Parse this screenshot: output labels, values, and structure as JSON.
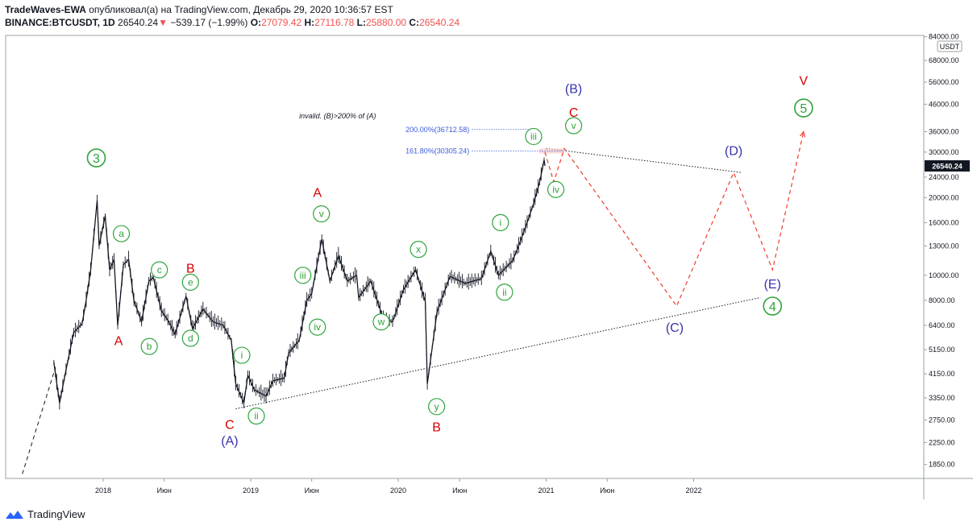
{
  "header": {
    "author": "TradeWaves-EWA",
    "published_text": " опубликовал(а) на TradingView.com, Декабрь 29, 2020 10:36:57 EST",
    "symbol": "BINANCE:BTCUSDT, 1D",
    "last": "26540.24",
    "down_arrow": "▼",
    "change": "−539.17 (−1.99%)",
    "o_label": "O:",
    "o_value": "27079.42",
    "h_label": "H:",
    "h_value": "27116.78",
    "l_label": "L:",
    "l_value": "25880.00",
    "c_label": "C:",
    "c_value": "26540.24"
  },
  "footer": {
    "brand": "TradingView"
  },
  "colors": {
    "green": "#2ea33b",
    "red": "#d50000",
    "blue": "#3634a8",
    "candle": "#131722",
    "dash_red": "#ef3b2c",
    "fib": "#3a5bd9",
    "price_tag": "#131722"
  },
  "chart_data": {
    "type": "line",
    "title": "",
    "scale": "log",
    "y_unit": "USDT",
    "current_price": "26540.24",
    "price_ticks": [
      {
        "v": 84000,
        "label": "84000.00"
      },
      {
        "v": 68000,
        "label": "68000.00"
      },
      {
        "v": 56000,
        "label": "56000.00"
      },
      {
        "v": 46000,
        "label": "46000.00"
      },
      {
        "v": 36000,
        "label": "36000.00"
      },
      {
        "v": 30000,
        "label": "30000.00"
      },
      {
        "v": 24000,
        "label": "24000.00"
      },
      {
        "v": 20000,
        "label": "20000.00"
      },
      {
        "v": 16000,
        "label": "16000.00"
      },
      {
        "v": 13000,
        "label": "13000.00"
      },
      {
        "v": 10000,
        "label": "10000.00"
      },
      {
        "v": 8000,
        "label": "8000.00"
      },
      {
        "v": 6400,
        "label": "6400.00"
      },
      {
        "v": 5150,
        "label": "5150.00"
      },
      {
        "v": 4150,
        "label": "4150.00"
      },
      {
        "v": 3350,
        "label": "3350.00"
      },
      {
        "v": 2750,
        "label": "2750.00"
      },
      {
        "v": 2250,
        "label": "2250.00"
      },
      {
        "v": 1850,
        "label": "1850.00"
      }
    ],
    "time_ticks": [
      {
        "d": "2018-01-01",
        "label": "2018"
      },
      {
        "d": "2018-06-01",
        "label": "Июн"
      },
      {
        "d": "2019-01-01",
        "label": "2019"
      },
      {
        "d": "2019-06-01",
        "label": "Июн"
      },
      {
        "d": "2020-01-01",
        "label": "2020"
      },
      {
        "d": "2020-06-01",
        "label": "Июн"
      },
      {
        "d": "2021-01-01",
        "label": "2021"
      },
      {
        "d": "2021-06-01",
        "label": "Июн"
      },
      {
        "d": "2022-01-01",
        "label": "2022"
      }
    ],
    "price_series": [
      [
        "2017-09-01",
        4600
      ],
      [
        "2017-09-15",
        3200
      ],
      [
        "2017-10-01",
        4300
      ],
      [
        "2017-10-20",
        6000
      ],
      [
        "2017-11-10",
        6500
      ],
      [
        "2017-11-20",
        8000
      ],
      [
        "2017-12-01",
        10500
      ],
      [
        "2017-12-17",
        19500
      ],
      [
        "2017-12-22",
        13000
      ],
      [
        "2018-01-06",
        17000
      ],
      [
        "2018-01-17",
        10500
      ],
      [
        "2018-01-28",
        11500
      ],
      [
        "2018-02-06",
        6400
      ],
      [
        "2018-02-20",
        11000
      ],
      [
        "2018-03-05",
        11500
      ],
      [
        "2018-03-18",
        8000
      ],
      [
        "2018-04-06",
        6600
      ],
      [
        "2018-04-24",
        9500
      ],
      [
        "2018-05-05",
        9800
      ],
      [
        "2018-05-25",
        7300
      ],
      [
        "2018-06-10",
        6700
      ],
      [
        "2018-06-28",
        5900
      ],
      [
        "2018-07-25",
        8300
      ],
      [
        "2018-08-10",
        6200
      ],
      [
        "2018-09-05",
        7400
      ],
      [
        "2018-09-30",
        6600
      ],
      [
        "2018-10-25",
        6400
      ],
      [
        "2018-11-14",
        5600
      ],
      [
        "2018-11-25",
        3800
      ],
      [
        "2018-12-15",
        3200
      ],
      [
        "2018-12-25",
        4100
      ],
      [
        "2019-01-10",
        3600
      ],
      [
        "2019-02-08",
        3400
      ],
      [
        "2019-02-25",
        3900
      ],
      [
        "2019-03-25",
        4000
      ],
      [
        "2019-04-05",
        5000
      ],
      [
        "2019-05-01",
        5600
      ],
      [
        "2019-05-20",
        8000
      ],
      [
        "2019-06-01",
        8500
      ],
      [
        "2019-06-26",
        13800
      ],
      [
        "2019-07-16",
        9500
      ],
      [
        "2019-08-06",
        11900
      ],
      [
        "2019-08-28",
        9500
      ],
      [
        "2019-09-20",
        10000
      ],
      [
        "2019-09-25",
        8200
      ],
      [
        "2019-10-25",
        9500
      ],
      [
        "2019-11-25",
        6800
      ],
      [
        "2019-12-18",
        6600
      ],
      [
        "2020-01-14",
        8800
      ],
      [
        "2020-02-13",
        10500
      ],
      [
        "2020-03-08",
        7900
      ],
      [
        "2020-03-13",
        3800
      ],
      [
        "2020-04-06",
        7200
      ],
      [
        "2020-05-08",
        9900
      ],
      [
        "2020-06-15",
        9300
      ],
      [
        "2020-07-25",
        9700
      ],
      [
        "2020-08-17",
        12400
      ],
      [
        "2020-09-05",
        10000
      ],
      [
        "2020-10-10",
        11400
      ],
      [
        "2020-10-25",
        13000
      ],
      [
        "2020-11-15",
        16000
      ],
      [
        "2020-12-01",
        19000
      ],
      [
        "2020-12-16",
        23000
      ],
      [
        "2020-12-27",
        28000
      ],
      [
        "2020-12-29",
        26540
      ]
    ],
    "forecast_path": [
      [
        "2020-12-29",
        30000
      ],
      [
        "2021-01-20",
        23000
      ],
      [
        "2021-02-15",
        31000
      ],
      [
        "2021-11-20",
        7600
      ],
      [
        "2022-04-10",
        25000
      ],
      [
        "2022-07-15",
        10500
      ],
      [
        "2022-09-30",
        36000
      ]
    ],
    "trendlines": [
      {
        "from": [
          "2018-11-25",
          3040
        ],
        "to": [
          "2022-06-15",
          8200
        ],
        "style": "dotted"
      },
      {
        "from": [
          "2021-01-01",
          31000
        ],
        "to": [
          "2022-05-01",
          25000
        ],
        "style": "dotted"
      },
      {
        "from": [
          "2017-06-15",
          1700
        ],
        "to": [
          "2017-09-01",
          4200
        ],
        "style": "dashed"
      }
    ],
    "fib_levels": [
      {
        "label": "200.00%(36712.58)",
        "value": 36712.58,
        "d_from": "2020-07-01",
        "d_to": "2020-12-10"
      },
      {
        "label": "161.80%(30305.24)",
        "value": 30305.24,
        "d_from": "2020-07-01",
        "d_to": "2021-02-15"
      }
    ],
    "annotation": "invalid. (B)>200% of (A)",
    "wave_labels": [
      {
        "t": "3",
        "d": "2017-12-15",
        "v": 28500,
        "c": "green",
        "circle": "double"
      },
      {
        "t": "a",
        "d": "2018-02-15",
        "v": 14500,
        "c": "green",
        "circle": "single"
      },
      {
        "t": "A",
        "d": "2018-02-08",
        "v": 5600,
        "c": "red"
      },
      {
        "t": "c",
        "d": "2018-05-20",
        "v": 10500,
        "c": "green",
        "circle": "single"
      },
      {
        "t": "B",
        "d": "2018-08-05",
        "v": 10700,
        "c": "red"
      },
      {
        "t": "e",
        "d": "2018-08-05",
        "v": 9400,
        "c": "green",
        "circle": "single"
      },
      {
        "t": "b",
        "d": "2018-04-25",
        "v": 5300,
        "c": "green",
        "circle": "single"
      },
      {
        "t": "d",
        "d": "2018-08-05",
        "v": 5700,
        "c": "green",
        "circle": "single"
      },
      {
        "t": "i",
        "d": "2018-12-10",
        "v": 4900,
        "c": "green",
        "circle": "single"
      },
      {
        "t": "C",
        "d": "2018-11-10",
        "v": 2650,
        "c": "red"
      },
      {
        "t": "(A)",
        "d": "2018-11-10",
        "v": 2300,
        "c": "blue"
      },
      {
        "t": "ii",
        "d": "2019-01-15",
        "v": 2850,
        "c": "green",
        "circle": "single"
      },
      {
        "t": "A",
        "d": "2019-06-15",
        "v": 21000,
        "c": "red"
      },
      {
        "t": "v",
        "d": "2019-06-25",
        "v": 17300,
        "c": "green",
        "circle": "single"
      },
      {
        "t": "iii",
        "d": "2019-05-10",
        "v": 10000,
        "c": "green",
        "circle": "single"
      },
      {
        "t": "iv",
        "d": "2019-06-15",
        "v": 6300,
        "c": "green",
        "circle": "single"
      },
      {
        "t": "w",
        "d": "2019-11-20",
        "v": 6600,
        "c": "green",
        "circle": "single"
      },
      {
        "t": "x",
        "d": "2020-02-20",
        "v": 12600,
        "c": "green",
        "circle": "single"
      },
      {
        "t": "y",
        "d": "2020-04-05",
        "v": 3100,
        "c": "green",
        "circle": "single"
      },
      {
        "t": "B",
        "d": "2020-04-05",
        "v": 2600,
        "c": "red"
      },
      {
        "t": "i",
        "d": "2020-09-10",
        "v": 16000,
        "c": "green",
        "circle": "single"
      },
      {
        "t": "ii",
        "d": "2020-09-20",
        "v": 8600,
        "c": "green",
        "circle": "single"
      },
      {
        "t": "iii",
        "d": "2020-12-01",
        "v": 34500,
        "c": "green",
        "circle": "single"
      },
      {
        "t": "iv",
        "d": "2021-01-25",
        "v": 21500,
        "c": "green",
        "circle": "single"
      },
      {
        "t": "v",
        "d": "2021-03-10",
        "v": 38000,
        "c": "green",
        "circle": "single"
      },
      {
        "t": "C",
        "d": "2021-03-10",
        "v": 43000,
        "c": "red"
      },
      {
        "t": "(B)",
        "d": "2021-03-10",
        "v": 53000,
        "c": "blue"
      },
      {
        "t": "(D)",
        "d": "2022-04-10",
        "v": 30500,
        "c": "blue"
      },
      {
        "t": "(C)",
        "d": "2021-11-15",
        "v": 6300,
        "c": "blue"
      },
      {
        "t": "(E)",
        "d": "2022-07-15",
        "v": 9300,
        "c": "blue"
      },
      {
        "t": "4",
        "d": "2022-07-15",
        "v": 7600,
        "c": "green",
        "circle": "double"
      },
      {
        "t": "V",
        "d": "2022-09-30",
        "v": 57000,
        "c": "red"
      },
      {
        "t": "5",
        "d": "2022-09-30",
        "v": 44500,
        "c": "green",
        "circle": "double"
      }
    ]
  }
}
